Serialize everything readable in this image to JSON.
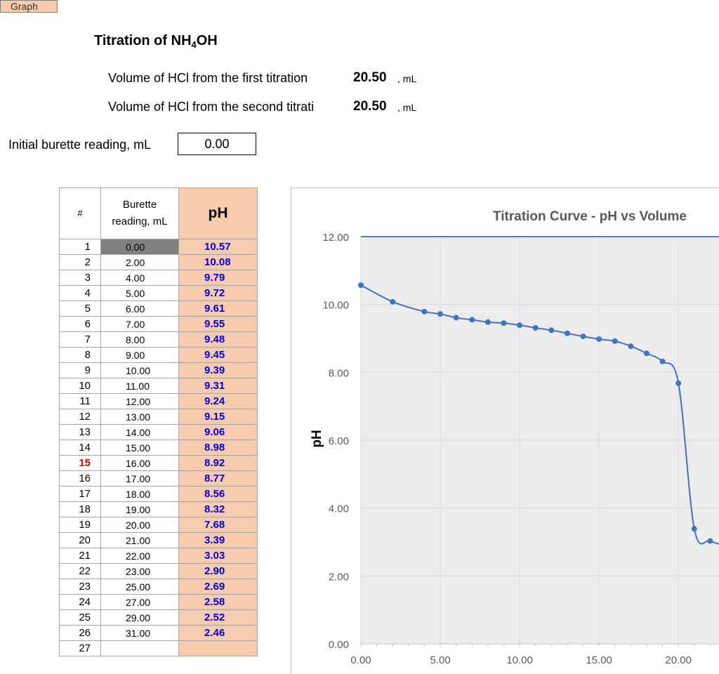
{
  "graph_button": "Graph",
  "title": {
    "main": "Titration of NH",
    "sub": "4",
    "tail": "OH"
  },
  "titrations": [
    {
      "label": "Volume of HCl from the first titration",
      "value": "20.50",
      "unit": ", mL"
    },
    {
      "label": "Volume of HCl from the second titrati",
      "value": "20.50",
      "unit": ", mL"
    }
  ],
  "initial_burette": {
    "label": "Initial burette reading, mL",
    "value": "0.00"
  },
  "table": {
    "headers": {
      "idx": "#",
      "vol": "Burette reading, mL",
      "ph": "pH"
    },
    "highlight_row": 15,
    "rows": [
      [
        "1",
        "0.00",
        "10.57"
      ],
      [
        "2",
        "2.00",
        "10.08"
      ],
      [
        "3",
        "4.00",
        "9.79"
      ],
      [
        "4",
        "5.00",
        "9.72"
      ],
      [
        "5",
        "6.00",
        "9.61"
      ],
      [
        "6",
        "7.00",
        "9.55"
      ],
      [
        "7",
        "8.00",
        "9.48"
      ],
      [
        "8",
        "9.00",
        "9.45"
      ],
      [
        "9",
        "10.00",
        "9.39"
      ],
      [
        "10",
        "11.00",
        "9.31"
      ],
      [
        "11",
        "12.00",
        "9.24"
      ],
      [
        "12",
        "13.00",
        "9.15"
      ],
      [
        "13",
        "14.00",
        "9.06"
      ],
      [
        "14",
        "15.00",
        "8.98"
      ],
      [
        "15",
        "16.00",
        "8.92"
      ],
      [
        "16",
        "17.00",
        "8.77"
      ],
      [
        "17",
        "18.00",
        "8.56"
      ],
      [
        "18",
        "19.00",
        "8.32"
      ],
      [
        "19",
        "20.00",
        "7.68"
      ],
      [
        "20",
        "21.00",
        "3.39"
      ],
      [
        "21",
        "22.00",
        "3.03"
      ],
      [
        "22",
        "23.00",
        "2.90"
      ],
      [
        "23",
        "25.00",
        "2.69"
      ],
      [
        "24",
        "27.00",
        "2.58"
      ],
      [
        "25",
        "29.00",
        "2.52"
      ],
      [
        "26",
        "31.00",
        "2.46"
      ],
      [
        "27",
        "",
        ""
      ]
    ]
  },
  "chart_data": {
    "type": "line",
    "title": "Titration Curve - pH vs Volume",
    "ylabel": "pH",
    "xlabel": "",
    "x_ticks": [
      "0.00",
      "5.00",
      "10.00",
      "15.00",
      "20.00"
    ],
    "y_ticks": [
      "0.00",
      "2.00",
      "4.00",
      "6.00",
      "8.00",
      "10.00",
      "12.00"
    ],
    "xlim": [
      0,
      23
    ],
    "ylim": [
      0,
      12
    ],
    "grid": true,
    "line_color": "#4472c4",
    "plot_bg": "#ececec",
    "x": [
      0,
      2,
      4,
      5,
      6,
      7,
      8,
      9,
      10,
      11,
      12,
      13,
      14,
      15,
      16,
      17,
      18,
      19,
      20,
      21,
      22,
      23
    ],
    "y": [
      10.57,
      10.08,
      9.79,
      9.72,
      9.61,
      9.55,
      9.48,
      9.45,
      9.39,
      9.31,
      9.24,
      9.15,
      9.06,
      8.98,
      8.92,
      8.77,
      8.56,
      8.32,
      7.68,
      3.39,
      3.03,
      2.9
    ]
  }
}
